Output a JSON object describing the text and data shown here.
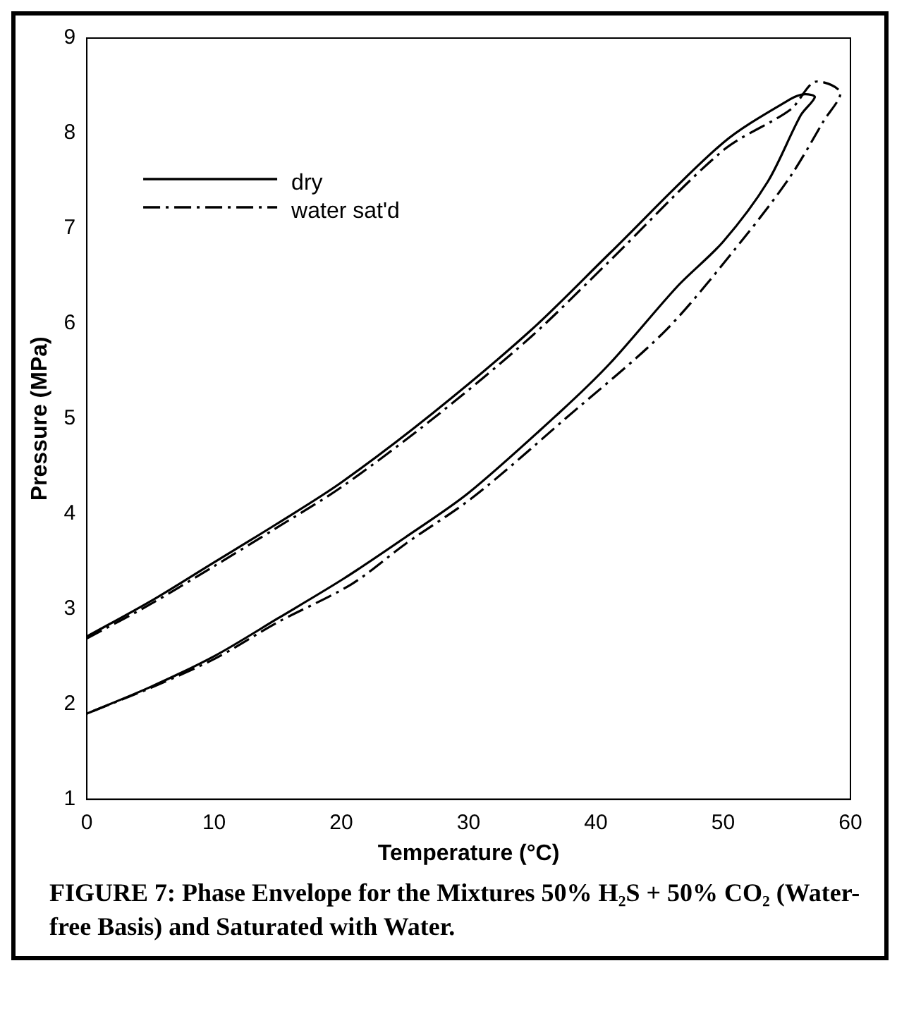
{
  "chart_data": {
    "type": "line",
    "xlabel": "Temperature (°C)",
    "ylabel": "Pressure (MPa)",
    "xlim": [
      0,
      60
    ],
    "xticks": [
      0,
      10,
      20,
      30,
      40,
      50,
      60
    ],
    "ylim": [
      1,
      9
    ],
    "yticks": [
      1,
      2,
      3,
      4,
      5,
      6,
      7,
      8,
      9
    ],
    "grid": false,
    "legend": "top left",
    "marker": "none",
    "series": [
      {
        "name": "dry",
        "color": "#000000",
        "line_style": "solid",
        "x": [
          0,
          5,
          10,
          15,
          20,
          27.2,
          34.9,
          41.1,
          50,
          55.3,
          56.4,
          57.2,
          56.1,
          53.5,
          50,
          46.4,
          41.1,
          37.1,
          30,
          25,
          20.2,
          15,
          10.1,
          5,
          0
        ],
        "values": [
          2.71,
          3.08,
          3.49,
          3.9,
          4.33,
          5.06,
          5.93,
          6.74,
          7.9,
          8.36,
          8.41,
          8.38,
          8.19,
          7.49,
          6.86,
          6.39,
          5.58,
          5.06,
          4.22,
          3.75,
          3.32,
          2.9,
          2.51,
          2.18,
          1.9
        ]
      },
      {
        "name": "water sat'd",
        "color": "#000000",
        "line_style": "dashed",
        "x": [
          0,
          5,
          10,
          15,
          20,
          27.2,
          34.9,
          41.1,
          50,
          55.3,
          57.2,
          59.2,
          57.9,
          55.3,
          51.7,
          45.5,
          37.6,
          30.5,
          25,
          20.8,
          15,
          10.1,
          5,
          0
        ],
        "values": [
          2.69,
          3.05,
          3.45,
          3.86,
          4.28,
          5.0,
          5.86,
          6.66,
          7.82,
          8.25,
          8.54,
          8.43,
          8.13,
          7.55,
          6.91,
          5.93,
          5.0,
          4.19,
          3.68,
          3.26,
          2.86,
          2.48,
          2.17,
          1.9
        ]
      }
    ],
    "annotations": [
      "FIGURE 7: Phase Envelope for the Mixtures 50% H₂S + 50% CO₂ (Water-free Basis) and Saturated with Water."
    ]
  }
}
